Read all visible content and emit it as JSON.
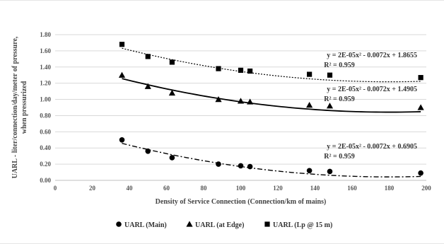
{
  "chart_data": {
    "type": "scatter",
    "title": "",
    "xlabel": "Density of Service Connection (Connection/km of mains)",
    "ylabel": "UARL - liter/connection/day/meter of pressure, when pressurized",
    "xlim": [
      0,
      200
    ],
    "ylim": [
      0,
      1.8
    ],
    "xticks": [
      "0",
      "20",
      "40",
      "60",
      "80",
      "100",
      "120",
      "140",
      "160",
      "180",
      "200"
    ],
    "yticks": [
      "0.00",
      "0.20",
      "0.40",
      "0.60",
      "0.80",
      "1.00",
      "1.20",
      "1.40",
      "1.60",
      "1.80"
    ],
    "grid": true,
    "legend_position": "bottom",
    "series": [
      {
        "name": "UARL (Main)",
        "marker": "circle",
        "color": "#000000",
        "trendline_style": "dash-dot",
        "points": [
          {
            "x": 36,
            "y": 0.5
          },
          {
            "x": 50,
            "y": 0.36
          },
          {
            "x": 63,
            "y": 0.28
          },
          {
            "x": 88,
            "y": 0.2
          },
          {
            "x": 100,
            "y": 0.18
          },
          {
            "x": 105,
            "y": 0.17
          },
          {
            "x": 137,
            "y": 0.12
          },
          {
            "x": 148,
            "y": 0.11
          },
          {
            "x": 197,
            "y": 0.09
          }
        ],
        "trendline": {
          "label": "y = 2E-05x² - 0.0072x + 0.6905",
          "r2": "R² = 0.959",
          "a": 2e-05,
          "b": -0.0072,
          "c": 0.6905
        }
      },
      {
        "name": "UARL (at Edge)",
        "marker": "triangle",
        "color": "#000000",
        "trendline_style": "solid",
        "points": [
          {
            "x": 36,
            "y": 1.3
          },
          {
            "x": 50,
            "y": 1.16
          },
          {
            "x": 63,
            "y": 1.08
          },
          {
            "x": 88,
            "y": 1.0
          },
          {
            "x": 100,
            "y": 0.98
          },
          {
            "x": 105,
            "y": 0.97
          },
          {
            "x": 137,
            "y": 0.93
          },
          {
            "x": 148,
            "y": 0.92
          },
          {
            "x": 197,
            "y": 0.9
          }
        ],
        "trendline": {
          "label": "y = 2E-05x² - 0.0072x + 1.4905",
          "r2": "R² = 0.959",
          "a": 2e-05,
          "b": -0.0072,
          "c": 1.4905
        }
      },
      {
        "name": "UARL (Lp @ 15 m)",
        "marker": "square",
        "color": "#000000",
        "trendline_style": "dotted",
        "points": [
          {
            "x": 36,
            "y": 1.68
          },
          {
            "x": 50,
            "y": 1.53
          },
          {
            "x": 63,
            "y": 1.46
          },
          {
            "x": 88,
            "y": 1.38
          },
          {
            "x": 100,
            "y": 1.36
          },
          {
            "x": 105,
            "y": 1.35
          },
          {
            "x": 137,
            "y": 1.31
          },
          {
            "x": 148,
            "y": 1.3
          },
          {
            "x": 197,
            "y": 1.27
          }
        ],
        "trendline": {
          "label": "y = 2E-05x² - 0.0072x + 1.8655",
          "r2": "R² = 0.959",
          "a": 2e-05,
          "b": -0.0072,
          "c": 1.8655
        }
      }
    ]
  }
}
